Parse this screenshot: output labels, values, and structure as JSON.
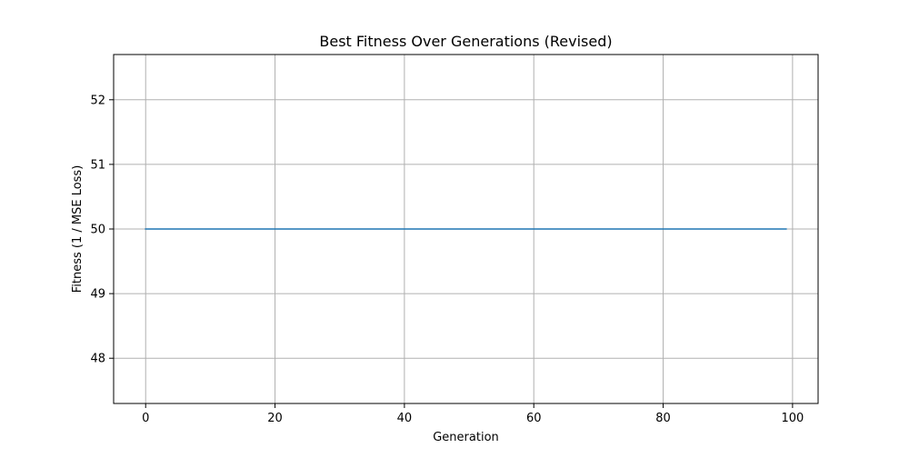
{
  "chart_data": {
    "type": "line",
    "title": "Best Fitness Over Generations (Revised)",
    "xlabel": "Generation",
    "ylabel": "Fitness (1 / MSE Loss)",
    "xlim": [
      -4.95,
      103.95
    ],
    "ylim": [
      47.3,
      52.7
    ],
    "xticks": [
      0,
      20,
      40,
      60,
      80,
      100
    ],
    "yticks": [
      48,
      49,
      50,
      51,
      52
    ],
    "grid": true,
    "series": [
      {
        "name": "",
        "color": "#1f77b4",
        "x": [
          0,
          99
        ],
        "y": [
          50,
          50
        ]
      }
    ]
  }
}
